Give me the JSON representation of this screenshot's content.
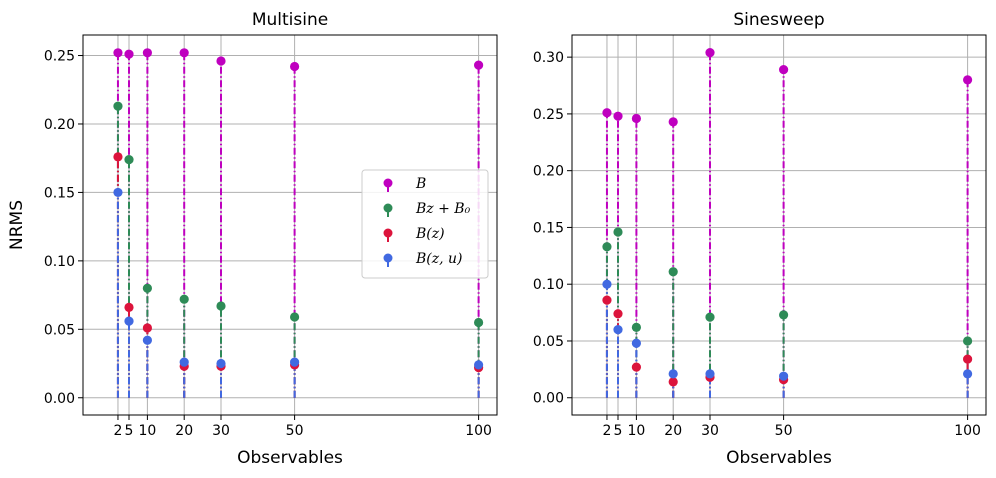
{
  "figure": {
    "ylabel": "NRMS"
  },
  "legend": {
    "entries": [
      {
        "name": "B",
        "color": "#bf00bf"
      },
      {
        "name": "Bz + B₀",
        "color": "#2e8b57"
      },
      {
        "name": "B(z)",
        "color": "#dc143c"
      },
      {
        "name": "B(z, u)",
        "color": "#4169e1"
      }
    ]
  },
  "chart_data": [
    {
      "type": "scatter",
      "style": "stem",
      "title": "Multisine",
      "xlabel": "Observables",
      "ylabel": "NRMS",
      "xlim": [
        -7.5,
        105
      ],
      "ylim": [
        -0.0126,
        0.265
      ],
      "xticks": [
        2,
        5,
        10,
        20,
        30,
        50,
        100
      ],
      "xtick_labels": [
        "2",
        "5",
        "10",
        "20",
        "30",
        "50",
        "100"
      ],
      "yticks": [
        0.0,
        0.05,
        0.1,
        0.15,
        0.2,
        0.25
      ],
      "ytick_labels": [
        "0.00",
        "0.05",
        "0.10",
        "0.15",
        "0.20",
        "0.25"
      ],
      "x": [
        2,
        5,
        10,
        20,
        30,
        50,
        100
      ],
      "series": [
        {
          "name": "B",
          "color": "#bf00bf",
          "values": [
            0.252,
            0.251,
            0.252,
            0.252,
            0.246,
            0.242,
            0.243
          ]
        },
        {
          "name": "Bz + B0",
          "color": "#2e8b57",
          "values": [
            0.213,
            0.174,
            0.08,
            0.072,
            0.067,
            0.059,
            0.055
          ]
        },
        {
          "name": "B(z)",
          "color": "#dc143c",
          "values": [
            0.176,
            0.066,
            0.051,
            0.023,
            0.023,
            0.024,
            0.022
          ]
        },
        {
          "name": "B(z, u)",
          "color": "#4169e1",
          "values": [
            0.15,
            0.056,
            0.042,
            0.026,
            0.025,
            0.026,
            0.024
          ]
        }
      ],
      "legend": true,
      "legend_position": "center-right",
      "grid": "horizontal"
    },
    {
      "type": "scatter",
      "style": "stem",
      "title": "Sinesweep",
      "xlabel": "Observables",
      "ylabel": "",
      "xlim": [
        -7.5,
        105
      ],
      "ylim": [
        -0.0152,
        0.3195
      ],
      "xticks": [
        2,
        5,
        10,
        20,
        30,
        50,
        100
      ],
      "xtick_labels": [
        "2",
        "5",
        "10",
        "20",
        "30",
        "50",
        "100"
      ],
      "yticks": [
        0.0,
        0.05,
        0.1,
        0.15,
        0.2,
        0.25,
        0.3
      ],
      "ytick_labels": [
        "0.00",
        "0.05",
        "0.10",
        "0.15",
        "0.20",
        "0.25",
        "0.30"
      ],
      "x": [
        2,
        5,
        10,
        20,
        30,
        50,
        100
      ],
      "series": [
        {
          "name": "B",
          "color": "#bf00bf",
          "values": [
            0.251,
            0.248,
            0.246,
            0.243,
            0.304,
            0.289,
            0.28
          ]
        },
        {
          "name": "Bz + B0",
          "color": "#2e8b57",
          "values": [
            0.133,
            0.146,
            0.062,
            0.111,
            0.071,
            0.073,
            0.05
          ]
        },
        {
          "name": "B(z)",
          "color": "#dc143c",
          "values": [
            0.086,
            0.074,
            0.027,
            0.014,
            0.018,
            0.016,
            0.034
          ]
        },
        {
          "name": "B(z, u)",
          "color": "#4169e1",
          "values": [
            0.1,
            0.06,
            0.048,
            0.021,
            0.021,
            0.019,
            0.021
          ]
        }
      ],
      "legend": false,
      "grid": "horizontal"
    }
  ]
}
